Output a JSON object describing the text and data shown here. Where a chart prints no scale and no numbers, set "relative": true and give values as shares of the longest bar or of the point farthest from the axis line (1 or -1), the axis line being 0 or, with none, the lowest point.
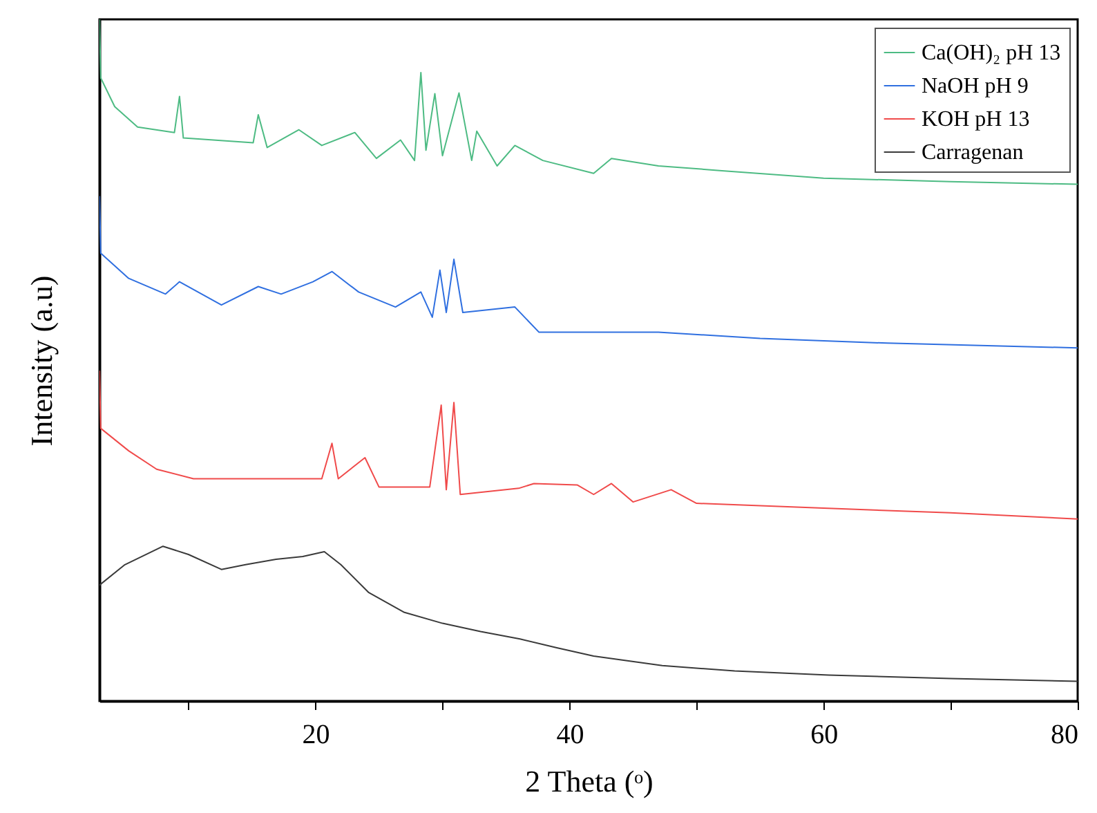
{
  "chart_data": {
    "type": "line",
    "xlabel": "2 Theta (ᵒ)",
    "ylabel": "Intensity (a.u)",
    "relative": true,
    "xlim": [
      3,
      80
    ],
    "xticks": [
      {
        "value": 10,
        "label": null
      },
      20,
      {
        "value": 30,
        "label": null
      },
      40,
      {
        "value": 50,
        "label": null
      },
      60,
      {
        "value": 70,
        "label": null
      },
      80
    ],
    "grid": false,
    "legend": "top right",
    "line_style": "solid",
    "marker": "none",
    "series": [
      {
        "name": "Ca(OH)₂ pH 13",
        "color": "#4dbb83",
        "x": [
          3,
          3.1,
          4.2,
          6,
          8.9,
          9.3,
          9.6,
          15.1,
          15.5,
          16.2,
          18.7,
          20.5,
          23.1,
          24.8,
          26.7,
          27.8,
          28.3,
          28.7,
          29.4,
          30,
          31.3,
          32.3,
          32.7,
          34.3,
          35.7,
          37.9,
          41.9,
          43.3,
          47,
          52,
          60,
          70,
          80
        ],
        "values": [
          1,
          0.914,
          0.872,
          0.842,
          0.834,
          0.887,
          0.826,
          0.819,
          0.86,
          0.812,
          0.838,
          0.815,
          0.834,
          0.796,
          0.823,
          0.793,
          0.922,
          0.808,
          0.891,
          0.8,
          0.892,
          0.793,
          0.836,
          0.785,
          0.815,
          0.793,
          0.774,
          0.796,
          0.785,
          0.778,
          0.767,
          0.762,
          0.758
        ]
      },
      {
        "name": "NaOH pH 9",
        "color": "#2f6fe0",
        "x": [
          3,
          3.1,
          5.3,
          8.2,
          9.3,
          12.6,
          15.5,
          17.3,
          19.8,
          21.3,
          23.4,
          26.3,
          28.3,
          29.2,
          29.8,
          30.3,
          30.9,
          31.6,
          35.7,
          37.6,
          41.9,
          47,
          55,
          65,
          80
        ],
        "values": [
          0.74,
          0.657,
          0.62,
          0.597,
          0.615,
          0.581,
          0.608,
          0.597,
          0.615,
          0.63,
          0.6,
          0.578,
          0.6,
          0.563,
          0.632,
          0.57,
          0.648,
          0.57,
          0.578,
          0.541,
          0.541,
          0.541,
          0.532,
          0.525,
          0.518
        ]
      },
      {
        "name": "KOH pH 13",
        "color": "#f04a4a",
        "x": [
          3,
          3.1,
          5.3,
          7.5,
          10.4,
          20.5,
          21.3,
          21.8,
          23.9,
          25,
          29,
          29.9,
          30.3,
          30.9,
          31.4,
          36,
          37.2,
          40.6,
          41.9,
          43.3,
          45,
          48,
          50,
          60,
          70,
          80
        ],
        "values": [
          0.484,
          0.4,
          0.367,
          0.34,
          0.326,
          0.326,
          0.378,
          0.326,
          0.357,
          0.314,
          0.314,
          0.434,
          0.31,
          0.438,
          0.303,
          0.312,
          0.319,
          0.317,
          0.303,
          0.319,
          0.292,
          0.31,
          0.29,
          0.283,
          0.276,
          0.267
        ]
      },
      {
        "name": "Carragenan",
        "color": "#3a3a3a",
        "x": [
          3,
          5,
          8,
          10,
          12.6,
          14.5,
          16.9,
          19,
          20.7,
          22,
          24.2,
          27,
          30,
          33,
          36.1,
          39,
          41.9,
          47.3,
          53,
          60.4,
          70,
          80
        ],
        "values": [
          0.17,
          0.2,
          0.227,
          0.215,
          0.193,
          0.2,
          0.208,
          0.212,
          0.219,
          0.2,
          0.159,
          0.13,
          0.114,
          0.102,
          0.091,
          0.078,
          0.066,
          0.052,
          0.044,
          0.038,
          0.033,
          0.029
        ]
      }
    ]
  }
}
